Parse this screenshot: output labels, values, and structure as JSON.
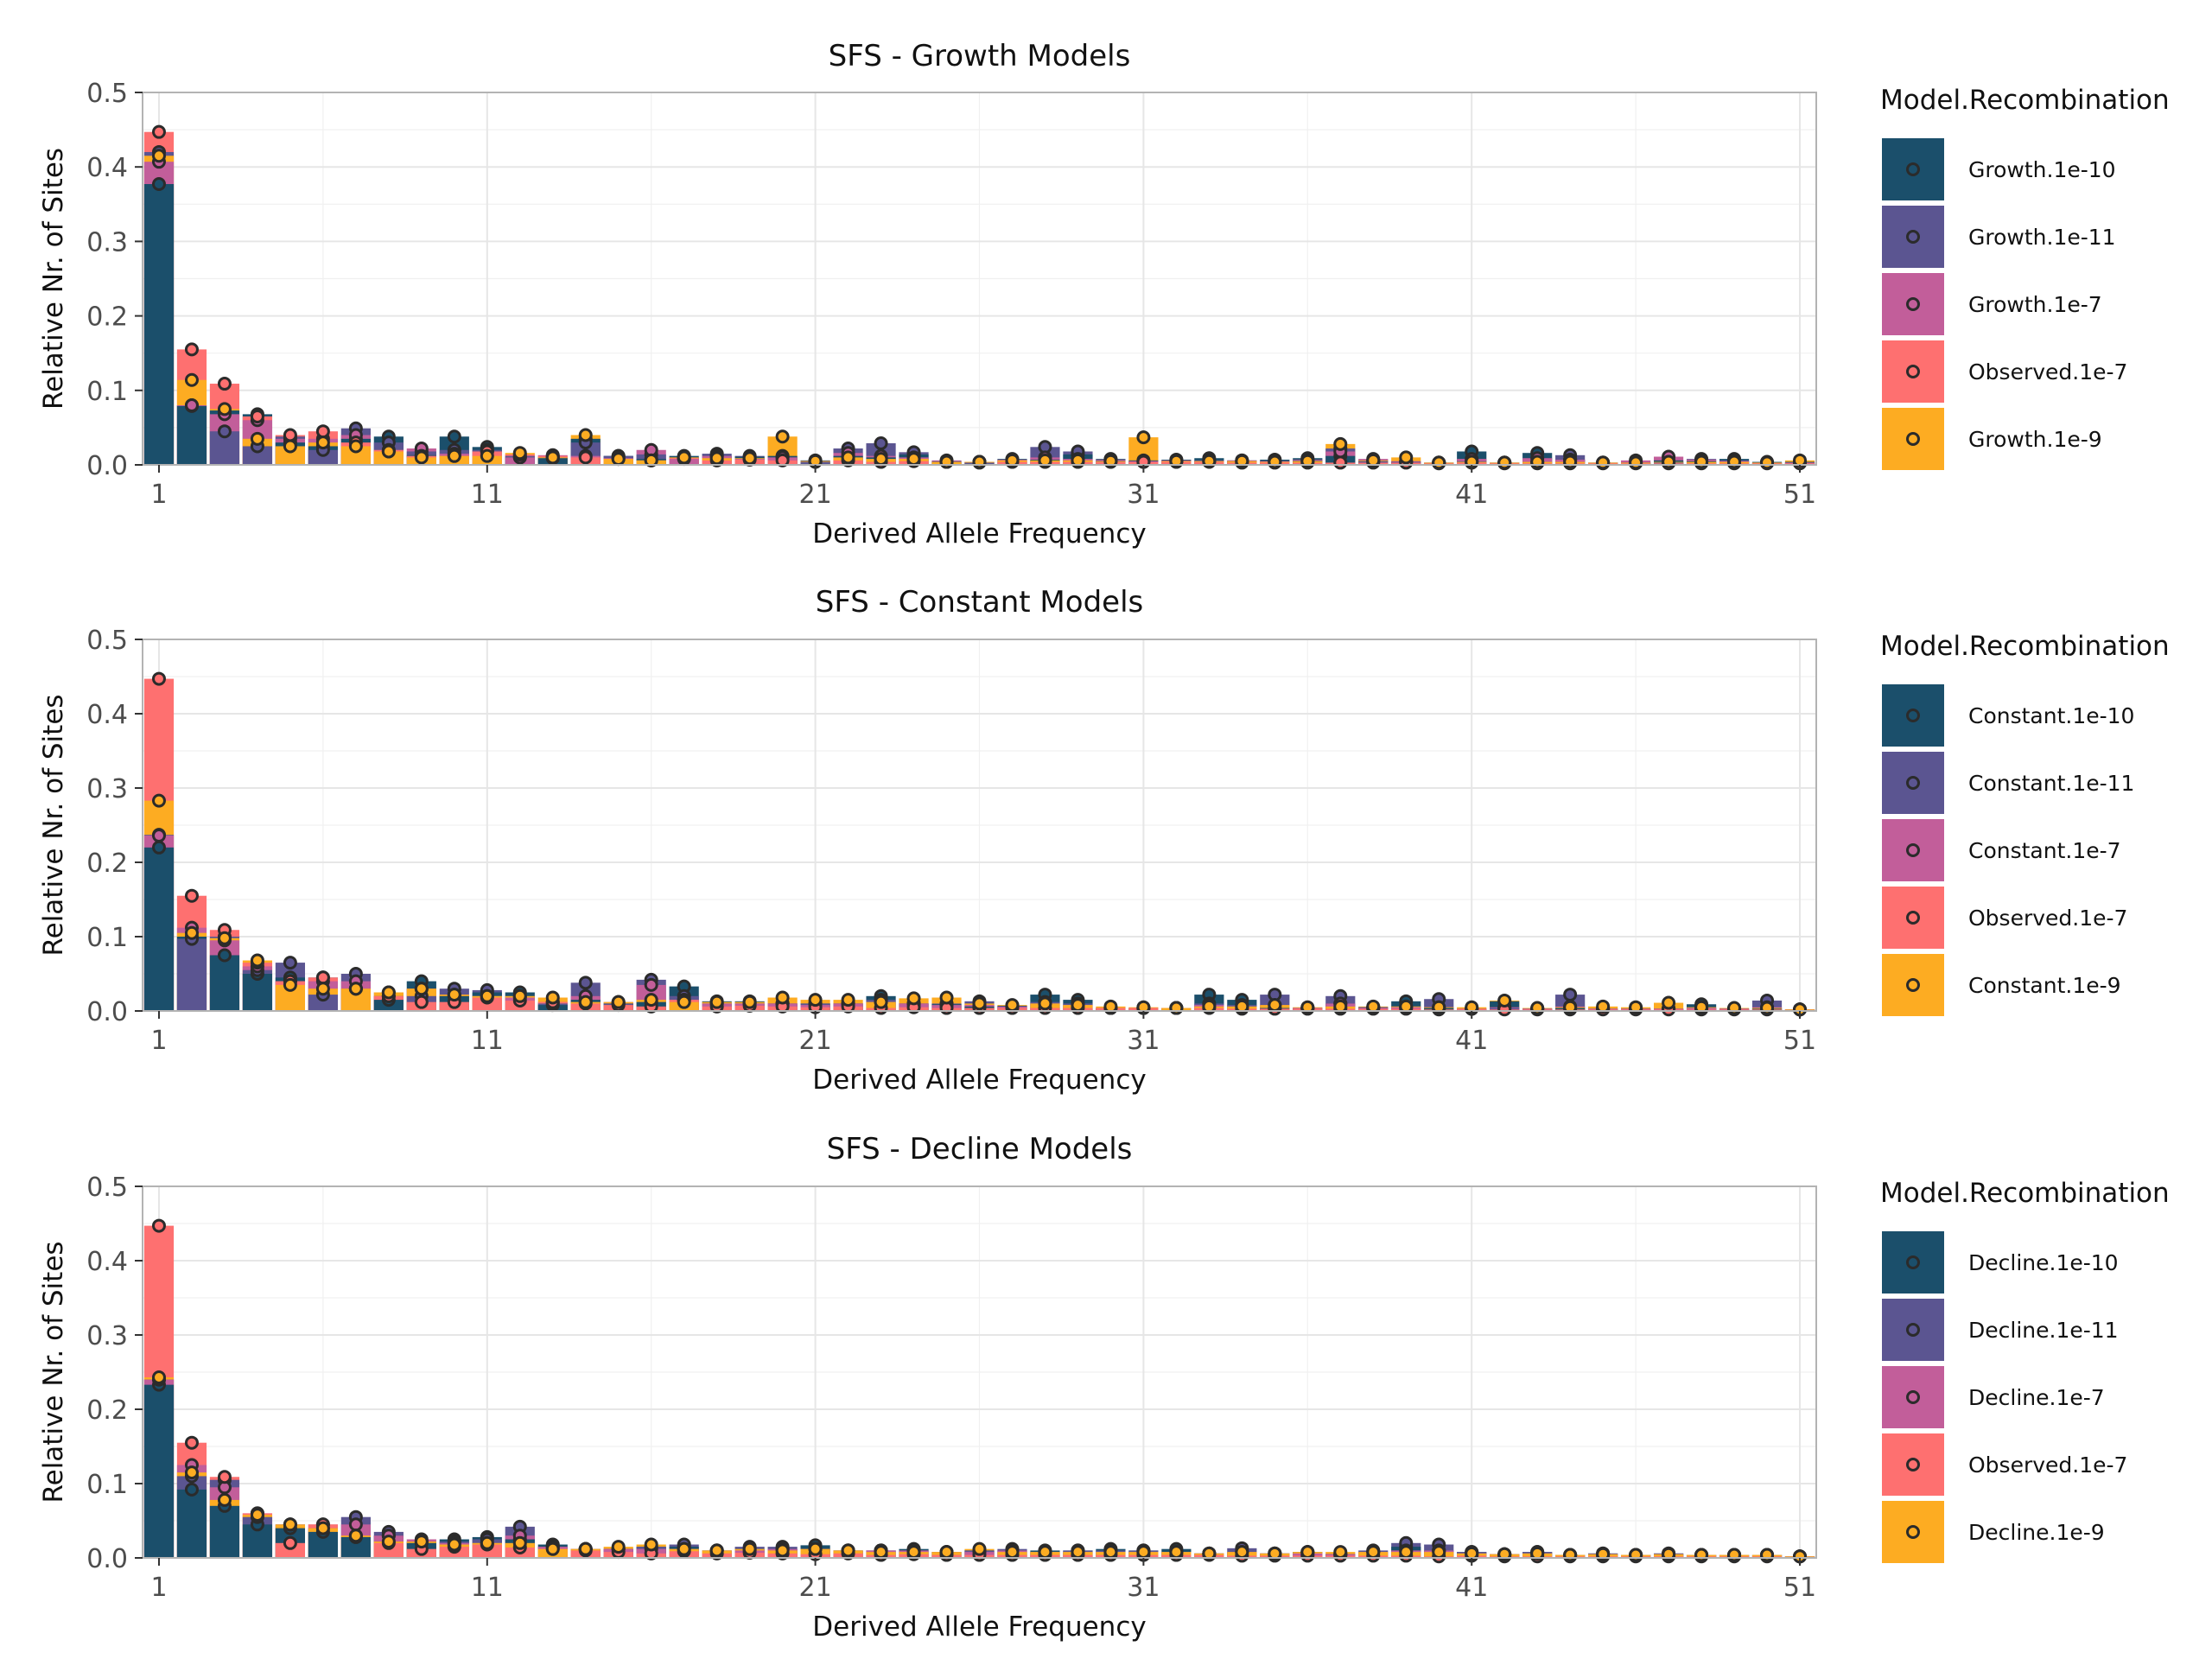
{
  "x_ticks": [
    1,
    11,
    21,
    31,
    41,
    51
  ],
  "y_ticks": [
    0,
    0.1,
    0.2,
    0.3,
    0.4,
    0.5
  ],
  "colors": {
    "recomb_1e-10": "#1b4f6b",
    "recomb_1e-11": "#5b5591",
    "recomb_1e-7": "#c25e9a",
    "observed": "#fe7070",
    "recomb_1e-9": "#fdac22",
    "panel_border": "#b3b3b3",
    "grid": "#e6e6e6",
    "point_stroke": "#2b2b2b"
  },
  "chart_data": [
    {
      "type": "bar",
      "title": "SFS - Growth Models",
      "xlabel": "Derived Allele Frequency",
      "ylabel": "Relative Nr. of Sites",
      "xlim": [
        0.5,
        51.5
      ],
      "ylim": [
        0,
        0.5
      ],
      "legend": {
        "title": "Model.Recombination",
        "position": "right",
        "entries": [
          "Growth.1e-10",
          "Growth.1e-11",
          "Growth.1e-7",
          "Observed.1e-7",
          "Growth.1e-9"
        ]
      },
      "series": [
        {
          "name": "Growth.1e-10",
          "values": [
            0.377,
            0.079,
            0.073,
            0.068,
            0.03,
            0.025,
            0.035,
            0.038,
            0.013,
            0.038,
            0.024,
            0.01,
            0.009,
            0.035,
            0.012,
            0.008,
            0.012,
            0.012,
            0.011,
            0.012,
            0.006,
            0.012,
            0.01,
            0.014,
            0.004,
            0.004,
            0.008,
            0.007,
            0.014,
            0.008,
            0.006,
            0.007,
            0.009,
            0.006,
            0.007,
            0.009,
            0.012,
            0.006,
            0.004,
            0.003,
            0.018,
            0.003,
            0.016,
            0.007,
            0.003,
            0.003,
            0.006,
            0.005,
            0.008,
            0.004,
            0.004
          ]
        },
        {
          "name": "Growth.1e-11",
          "values": [
            0.42,
            0.08,
            0.045,
            0.025,
            0.038,
            0.02,
            0.049,
            0.03,
            0.018,
            0.02,
            0.02,
            0.012,
            0.01,
            0.03,
            0.012,
            0.014,
            0.01,
            0.015,
            0.012,
            0.01,
            0.004,
            0.022,
            0.029,
            0.017,
            0.005,
            0.003,
            0.006,
            0.024,
            0.018,
            0.006,
            0.004,
            0.005,
            0.006,
            0.005,
            0.004,
            0.006,
            0.022,
            0.005,
            0.004,
            0.003,
            0.005,
            0.003,
            0.004,
            0.013,
            0.003,
            0.003,
            0.003,
            0.008,
            0.006,
            0.003,
            0.003
          ]
        },
        {
          "name": "Growth.1e-7",
          "values": [
            0.407,
            0.08,
            0.068,
            0.06,
            0.035,
            0.035,
            0.04,
            0.018,
            0.022,
            0.015,
            0.018,
            0.01,
            0.013,
            0.012,
            0.009,
            0.02,
            0.008,
            0.012,
            0.008,
            0.01,
            0.005,
            0.016,
            0.012,
            0.01,
            0.006,
            0.004,
            0.007,
            0.01,
            0.008,
            0.007,
            0.005,
            0.006,
            0.005,
            0.006,
            0.005,
            0.007,
            0.018,
            0.008,
            0.005,
            0.003,
            0.008,
            0.003,
            0.009,
            0.007,
            0.003,
            0.006,
            0.011,
            0.007,
            0.005,
            0.003,
            0.003
          ]
        },
        {
          "name": "Observed.1e-7",
          "values": [
            0.447,
            0.155,
            0.109,
            0.065,
            0.04,
            0.045,
            0.03,
            0.02,
            0.012,
            0.012,
            0.018,
            0.014,
            0.012,
            0.01,
            0.008,
            0.006,
            0.009,
            0.006,
            0.007,
            0.006,
            0.005,
            0.006,
            0.004,
            0.005,
            0.004,
            0.004,
            0.004,
            0.004,
            0.004,
            0.004,
            0.004,
            0.004,
            0.004,
            0.003,
            0.003,
            0.003,
            0.003,
            0.003,
            0.003,
            0.002,
            0.003,
            0.002,
            0.002,
            0.002,
            0.002,
            0.002,
            0.002,
            0.002,
            0.002,
            0.002,
            0.002
          ]
        },
        {
          "name": "Growth.1e-9",
          "values": [
            0.415,
            0.114,
            0.075,
            0.035,
            0.025,
            0.03,
            0.025,
            0.018,
            0.01,
            0.012,
            0.012,
            0.016,
            0.01,
            0.04,
            0.008,
            0.006,
            0.01,
            0.009,
            0.009,
            0.038,
            0.005,
            0.01,
            0.008,
            0.008,
            0.004,
            0.004,
            0.006,
            0.006,
            0.006,
            0.005,
            0.037,
            0.005,
            0.005,
            0.005,
            0.004,
            0.005,
            0.028,
            0.006,
            0.01,
            0.003,
            0.004,
            0.003,
            0.004,
            0.004,
            0.003,
            0.003,
            0.004,
            0.004,
            0.004,
            0.003,
            0.006
          ]
        }
      ]
    },
    {
      "type": "bar",
      "title": "SFS - Constant Models",
      "xlabel": "Derived Allele Frequency",
      "ylabel": "Relative Nr. of Sites",
      "xlim": [
        0.5,
        51.5
      ],
      "ylim": [
        0,
        0.5
      ],
      "legend": {
        "title": "Model.Recombination",
        "position": "right",
        "entries": [
          "Constant.1e-10",
          "Constant.1e-11",
          "Constant.1e-7",
          "Observed.1e-7",
          "Constant.1e-9"
        ]
      },
      "series": [
        {
          "name": "Constant.1e-10",
          "values": [
            0.22,
            0.1,
            0.075,
            0.05,
            0.045,
            0.045,
            0.03,
            0.015,
            0.04,
            0.02,
            0.025,
            0.025,
            0.008,
            0.015,
            0.01,
            0.012,
            0.033,
            0.013,
            0.013,
            0.01,
            0.01,
            0.01,
            0.02,
            0.01,
            0.009,
            0.006,
            0.007,
            0.022,
            0.015,
            0.004,
            0.004,
            0.004,
            0.022,
            0.015,
            0.004,
            0.004,
            0.01,
            0.005,
            0.013,
            0.004,
            0.003,
            0.013,
            0.003,
            0.004,
            0.003,
            0.003,
            0.003,
            0.009,
            0.003,
            0.003,
            0.002
          ]
        },
        {
          "name": "Constant.1e-11",
          "values": [
            0.237,
            0.097,
            0.1,
            0.055,
            0.065,
            0.022,
            0.05,
            0.02,
            0.02,
            0.03,
            0.028,
            0.02,
            0.01,
            0.038,
            0.01,
            0.042,
            0.02,
            0.01,
            0.01,
            0.01,
            0.01,
            0.01,
            0.015,
            0.01,
            0.01,
            0.013,
            0.006,
            0.012,
            0.01,
            0.004,
            0.004,
            0.004,
            0.01,
            0.008,
            0.022,
            0.004,
            0.02,
            0.005,
            0.006,
            0.016,
            0.003,
            0.004,
            0.003,
            0.022,
            0.003,
            0.003,
            0.003,
            0.004,
            0.003,
            0.014,
            0.002
          ]
        },
        {
          "name": "Constant.1e-7",
          "values": [
            0.236,
            0.112,
            0.095,
            0.06,
            0.04,
            0.04,
            0.04,
            0.025,
            0.03,
            0.022,
            0.02,
            0.018,
            0.012,
            0.02,
            0.012,
            0.035,
            0.015,
            0.01,
            0.01,
            0.01,
            0.008,
            0.01,
            0.012,
            0.01,
            0.008,
            0.008,
            0.006,
            0.01,
            0.008,
            0.004,
            0.004,
            0.004,
            0.008,
            0.006,
            0.008,
            0.004,
            0.01,
            0.004,
            0.005,
            0.005,
            0.003,
            0.005,
            0.003,
            0.006,
            0.003,
            0.003,
            0.003,
            0.004,
            0.003,
            0.005,
            0.002
          ]
        },
        {
          "name": "Observed.1e-7",
          "values": [
            0.447,
            0.155,
            0.109,
            0.065,
            0.04,
            0.045,
            0.03,
            0.02,
            0.012,
            0.012,
            0.018,
            0.014,
            0.012,
            0.01,
            0.008,
            0.006,
            0.015,
            0.006,
            0.007,
            0.006,
            0.005,
            0.006,
            0.004,
            0.005,
            0.004,
            0.004,
            0.004,
            0.004,
            0.004,
            0.004,
            0.004,
            0.004,
            0.004,
            0.003,
            0.003,
            0.003,
            0.003,
            0.003,
            0.003,
            0.002,
            0.003,
            0.002,
            0.002,
            0.002,
            0.002,
            0.002,
            0.002,
            0.002,
            0.002,
            0.002,
            0.002
          ]
        },
        {
          "name": "Constant.1e-9",
          "values": [
            0.283,
            0.105,
            0.098,
            0.068,
            0.035,
            0.03,
            0.03,
            0.025,
            0.03,
            0.022,
            0.02,
            0.02,
            0.018,
            0.012,
            0.012,
            0.015,
            0.012,
            0.012,
            0.012,
            0.018,
            0.015,
            0.015,
            0.012,
            0.017,
            0.018,
            0.01,
            0.008,
            0.01,
            0.008,
            0.006,
            0.005,
            0.004,
            0.006,
            0.006,
            0.008,
            0.005,
            0.006,
            0.006,
            0.006,
            0.005,
            0.005,
            0.014,
            0.004,
            0.005,
            0.006,
            0.005,
            0.011,
            0.005,
            0.004,
            0.004,
            0.002
          ]
        }
      ]
    },
    {
      "type": "bar",
      "title": "SFS - Decline Models",
      "xlabel": "Derived Allele Frequency",
      "ylabel": "Relative Nr. of Sites",
      "xlim": [
        0.5,
        51.5
      ],
      "ylim": [
        0,
        0.5
      ],
      "legend": {
        "title": "Model.Recombination",
        "position": "right",
        "entries": [
          "Decline.1e-10",
          "Decline.1e-11",
          "Decline.1e-7",
          "Observed.1e-7",
          "Decline.1e-9"
        ]
      },
      "series": [
        {
          "name": "Decline.1e-10",
          "values": [
            0.233,
            0.092,
            0.07,
            0.045,
            0.04,
            0.035,
            0.028,
            0.03,
            0.02,
            0.025,
            0.028,
            0.025,
            0.018,
            0.012,
            0.012,
            0.015,
            0.015,
            0.01,
            0.012,
            0.012,
            0.017,
            0.01,
            0.01,
            0.012,
            0.008,
            0.01,
            0.01,
            0.01,
            0.01,
            0.012,
            0.01,
            0.012,
            0.006,
            0.008,
            0.006,
            0.008,
            0.005,
            0.008,
            0.015,
            0.01,
            0.008,
            0.005,
            0.008,
            0.004,
            0.006,
            0.004,
            0.006,
            0.004,
            0.004,
            0.004,
            0.002
          ]
        },
        {
          "name": "Decline.1e-11",
          "values": [
            0.24,
            0.11,
            0.105,
            0.055,
            0.045,
            0.04,
            0.055,
            0.035,
            0.022,
            0.022,
            0.025,
            0.042,
            0.015,
            0.012,
            0.012,
            0.015,
            0.018,
            0.01,
            0.015,
            0.015,
            0.012,
            0.01,
            0.01,
            0.01,
            0.008,
            0.01,
            0.012,
            0.008,
            0.01,
            0.01,
            0.01,
            0.008,
            0.006,
            0.013,
            0.006,
            0.008,
            0.005,
            0.01,
            0.02,
            0.018,
            0.008,
            0.005,
            0.008,
            0.004,
            0.006,
            0.004,
            0.006,
            0.004,
            0.004,
            0.004,
            0.002
          ]
        },
        {
          "name": "Decline.1e-7",
          "values": [
            0.24,
            0.125,
            0.095,
            0.06,
            0.045,
            0.045,
            0.045,
            0.03,
            0.025,
            0.02,
            0.02,
            0.03,
            0.015,
            0.012,
            0.012,
            0.012,
            0.012,
            0.01,
            0.01,
            0.012,
            0.012,
            0.01,
            0.01,
            0.01,
            0.008,
            0.008,
            0.01,
            0.008,
            0.008,
            0.008,
            0.008,
            0.008,
            0.006,
            0.008,
            0.006,
            0.006,
            0.005,
            0.008,
            0.01,
            0.01,
            0.006,
            0.005,
            0.006,
            0.004,
            0.005,
            0.004,
            0.005,
            0.004,
            0.004,
            0.004,
            0.002
          ]
        },
        {
          "name": "Observed.1e-7",
          "values": [
            0.447,
            0.155,
            0.109,
            0.06,
            0.02,
            0.045,
            0.03,
            0.02,
            0.012,
            0.015,
            0.018,
            0.014,
            0.012,
            0.01,
            0.008,
            0.006,
            0.009,
            0.006,
            0.007,
            0.006,
            0.005,
            0.006,
            0.004,
            0.005,
            0.004,
            0.004,
            0.004,
            0.004,
            0.004,
            0.004,
            0.004,
            0.004,
            0.004,
            0.003,
            0.003,
            0.003,
            0.003,
            0.003,
            0.003,
            0.002,
            0.003,
            0.002,
            0.002,
            0.002,
            0.002,
            0.002,
            0.002,
            0.002,
            0.002,
            0.002,
            0.002
          ]
        },
        {
          "name": "Decline.1e-9",
          "values": [
            0.243,
            0.115,
            0.078,
            0.058,
            0.045,
            0.04,
            0.03,
            0.022,
            0.022,
            0.018,
            0.02,
            0.02,
            0.012,
            0.012,
            0.015,
            0.018,
            0.012,
            0.01,
            0.012,
            0.01,
            0.012,
            0.01,
            0.008,
            0.008,
            0.008,
            0.012,
            0.008,
            0.008,
            0.008,
            0.008,
            0.008,
            0.008,
            0.006,
            0.008,
            0.006,
            0.008,
            0.008,
            0.008,
            0.008,
            0.008,
            0.006,
            0.005,
            0.006,
            0.004,
            0.005,
            0.004,
            0.005,
            0.004,
            0.004,
            0.004,
            0.002
          ]
        }
      ]
    }
  ]
}
